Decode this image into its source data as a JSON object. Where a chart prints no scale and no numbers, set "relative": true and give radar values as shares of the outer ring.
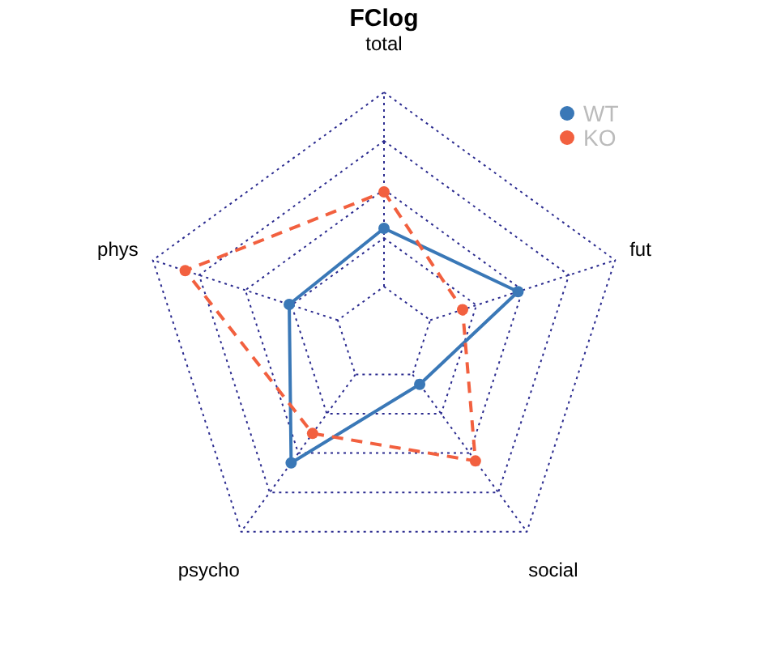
{
  "chart_data": {
    "type": "radar",
    "title": "FClog",
    "relative": true,
    "grid": true,
    "legend": "top right",
    "marker": "circle",
    "categories": [
      "total",
      "fut",
      "social",
      "psycho",
      "phys"
    ],
    "series": [
      {
        "name": "WT",
        "color": "#3a78b7",
        "line_style": "solid",
        "values": [
          0.44,
          0.58,
          0.25,
          0.65,
          0.41
        ]
      },
      {
        "name": "KO",
        "color": "#f2603f",
        "line_style": "dashed",
        "values": [
          0.59,
          0.34,
          0.64,
          0.5,
          0.86
        ]
      }
    ]
  }
}
